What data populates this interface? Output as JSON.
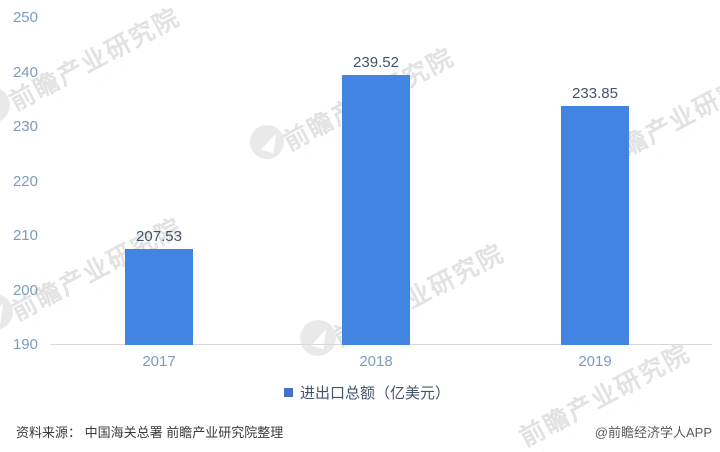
{
  "chart_data": {
    "type": "bar",
    "title": "",
    "categories": [
      "2017",
      "2018",
      "2019"
    ],
    "series": [
      {
        "name": "进出口总额（亿美元）",
        "values": [
          207.53,
          239.52,
          233.85
        ]
      }
    ],
    "ylim": [
      190,
      250
    ],
    "yticks": [
      190,
      200,
      210,
      220,
      230,
      240,
      250
    ],
    "grid": false,
    "legend_position": "bottom",
    "bar_color": "#4284E2",
    "axis_label_color": "#7E9BBC",
    "data_label_color": "#44546A",
    "baseline_color": "#D9D9D9"
  },
  "legend": {
    "marker_color": "#4472C4",
    "label": "进出口总额（亿美元）"
  },
  "footer": {
    "source": "资料来源： 中国海关总署 前瞻产业研究院整理",
    "credit": "@前瞻经济学人APP"
  },
  "watermark": {
    "logo": "qianzhan-circle-logo",
    "text": "前瞻产业研究院",
    "subtext": "· · · · · · · · · · · · ·"
  }
}
